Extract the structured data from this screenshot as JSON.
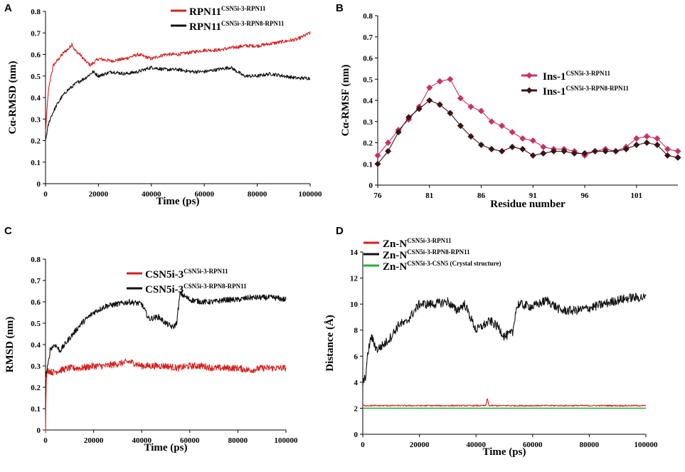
{
  "chart_data": [
    {
      "panel": "A",
      "type": "line",
      "xlabel": "Time (ps)",
      "ylabel": "Cα-RMSD (nm)",
      "xlim": [
        0,
        100000
      ],
      "ylim": [
        0,
        0.8
      ],
      "xticks": [
        "0",
        "20000",
        "40000",
        "60000",
        "80000",
        "100000"
      ],
      "yticks": [
        "0",
        "0.1",
        "0.2",
        "0.3",
        "0.4",
        "0.5",
        "0.6",
        "0.7",
        "0.8"
      ],
      "legend": "top-center",
      "series": [
        {
          "name": "RPN11",
          "sup": "CSN5i-3-RPN11",
          "color": "#d62020",
          "x": [
            0,
            1000,
            2000,
            3000,
            5000,
            7000,
            9000,
            10000,
            11000,
            13000,
            15000,
            17000,
            20000,
            25000,
            30000,
            35000,
            40000,
            45000,
            50000,
            55000,
            60000,
            65000,
            70000,
            75000,
            80000,
            85000,
            90000,
            95000,
            100000
          ],
          "y": [
            0.24,
            0.42,
            0.5,
            0.55,
            0.58,
            0.61,
            0.63,
            0.65,
            0.62,
            0.6,
            0.57,
            0.55,
            0.58,
            0.57,
            0.58,
            0.6,
            0.58,
            0.6,
            0.6,
            0.61,
            0.62,
            0.62,
            0.63,
            0.64,
            0.64,
            0.65,
            0.66,
            0.67,
            0.7
          ]
        },
        {
          "name": "RPN11",
          "sup": "CSN5i-3-RPN8-RPN11",
          "color": "#111111",
          "x": [
            0,
            1000,
            2000,
            4000,
            6000,
            8000,
            10000,
            12000,
            15000,
            18000,
            20000,
            25000,
            30000,
            35000,
            40000,
            45000,
            50000,
            55000,
            60000,
            65000,
            70000,
            75000,
            80000,
            85000,
            90000,
            95000,
            100000
          ],
          "y": [
            0.2,
            0.27,
            0.31,
            0.36,
            0.4,
            0.43,
            0.45,
            0.47,
            0.49,
            0.52,
            0.5,
            0.52,
            0.51,
            0.52,
            0.54,
            0.53,
            0.53,
            0.52,
            0.52,
            0.53,
            0.54,
            0.5,
            0.5,
            0.51,
            0.5,
            0.49,
            0.49
          ]
        }
      ]
    },
    {
      "panel": "B",
      "type": "line",
      "xlabel": "Residue number",
      "ylabel": "Cα-RMSF (nm)",
      "xlim": [
        76,
        105
      ],
      "ylim": [
        0,
        0.8
      ],
      "xticks": [
        "76",
        "81",
        "86",
        "91",
        "96",
        "101"
      ],
      "yticks": [
        "0",
        "0.1",
        "0.2",
        "0.3",
        "0.4",
        "0.5",
        "0.6",
        "0.7",
        "0.8"
      ],
      "legend": "right",
      "series": [
        {
          "name": "Ins-1",
          "sup": "CSN5i-3-RPN11",
          "color": "#c8326a",
          "x": [
            76,
            77,
            78,
            79,
            80,
            81,
            82,
            83,
            84,
            85,
            86,
            87,
            88,
            89,
            90,
            91,
            92,
            93,
            94,
            95,
            96,
            97,
            98,
            99,
            100,
            101,
            102,
            103,
            104,
            105
          ],
          "y": [
            0.14,
            0.2,
            0.26,
            0.31,
            0.37,
            0.46,
            0.49,
            0.5,
            0.41,
            0.37,
            0.35,
            0.3,
            0.28,
            0.25,
            0.22,
            0.21,
            0.18,
            0.17,
            0.17,
            0.16,
            0.14,
            0.16,
            0.17,
            0.16,
            0.18,
            0.22,
            0.23,
            0.22,
            0.17,
            0.16
          ]
        },
        {
          "name": "Ins-1",
          "sup": "CSN5i-3-RPN8-RPN11",
          "color": "#3a1414",
          "x": [
            76,
            77,
            78,
            79,
            80,
            81,
            82,
            83,
            84,
            85,
            86,
            87,
            88,
            89,
            90,
            91,
            92,
            93,
            94,
            95,
            96,
            97,
            98,
            99,
            100,
            101,
            102,
            103,
            104,
            105
          ],
          "y": [
            0.1,
            0.16,
            0.25,
            0.32,
            0.36,
            0.4,
            0.38,
            0.34,
            0.28,
            0.23,
            0.19,
            0.17,
            0.16,
            0.18,
            0.17,
            0.14,
            0.15,
            0.16,
            0.16,
            0.15,
            0.15,
            0.16,
            0.16,
            0.16,
            0.17,
            0.19,
            0.2,
            0.19,
            0.14,
            0.13
          ]
        }
      ]
    },
    {
      "panel": "C",
      "type": "line",
      "xlabel": "Time (ps)",
      "ylabel": "RMSD (nm)",
      "xlim": [
        0,
        100000
      ],
      "ylim": [
        0,
        0.8
      ],
      "xticks": [
        "0",
        "20000",
        "40000",
        "60000",
        "80000",
        "100000"
      ],
      "yticks": [
        "0",
        "0.1",
        "0.2",
        "0.3",
        "0.4",
        "0.5",
        "0.6",
        "0.7",
        "0.8"
      ],
      "legend": "top-center",
      "series": [
        {
          "name": "CSN5i-3",
          "sup": "CSN5i-3-RPN11",
          "color": "#d62020",
          "x": [
            0,
            300,
            600,
            1000,
            3000,
            6000,
            10000,
            15000,
            20000,
            25000,
            30000,
            35000,
            40000,
            45000,
            50000,
            55000,
            60000,
            65000,
            70000,
            75000,
            80000,
            85000,
            90000,
            95000,
            100000
          ],
          "y": [
            0,
            0.22,
            0.27,
            0.28,
            0.27,
            0.28,
            0.29,
            0.29,
            0.3,
            0.3,
            0.31,
            0.32,
            0.3,
            0.3,
            0.3,
            0.29,
            0.3,
            0.3,
            0.29,
            0.29,
            0.29,
            0.28,
            0.29,
            0.29,
            0.29
          ]
        },
        {
          "name": "CSN5i-3",
          "sup": "CSN5i-3-RPN8-RPN11",
          "color": "#111111",
          "x": [
            0,
            1000,
            2000,
            4000,
            6000,
            8000,
            10000,
            15000,
            20000,
            25000,
            30000,
            35000,
            40000,
            43000,
            47000,
            50000,
            53000,
            54500,
            56000,
            60000,
            65000,
            70000,
            75000,
            80000,
            85000,
            90000,
            95000,
            100000
          ],
          "y": [
            0.25,
            0.3,
            0.38,
            0.4,
            0.37,
            0.4,
            0.43,
            0.5,
            0.55,
            0.58,
            0.59,
            0.6,
            0.59,
            0.52,
            0.53,
            0.5,
            0.48,
            0.5,
            0.64,
            0.61,
            0.6,
            0.6,
            0.61,
            0.61,
            0.62,
            0.62,
            0.62,
            0.61
          ]
        }
      ]
    },
    {
      "panel": "D",
      "type": "line",
      "xlabel": "Time (ps)",
      "ylabel": "Distance (Å)",
      "xlim": [
        0,
        100000
      ],
      "ylim": [
        0,
        14
      ],
      "xticks": [
        "0",
        "20000",
        "40000",
        "60000",
        "80000",
        "100000"
      ],
      "yticks": [
        "0",
        "2",
        "4",
        "6",
        "8",
        "10",
        "12",
        "14"
      ],
      "legend": "top-left",
      "series": [
        {
          "name": "Zn-N",
          "sup": "CSN5i-3-RPN11",
          "color": "#d62020",
          "x": [
            0,
            20000,
            40000,
            43500,
            44000,
            44500,
            60000,
            80000,
            100000
          ],
          "y": [
            2.2,
            2.2,
            2.2,
            2.2,
            2.8,
            2.2,
            2.2,
            2.2,
            2.2
          ]
        },
        {
          "name": "Zn-N",
          "sup": "CSN5i-3-RPN8-RPN11",
          "color": "#111111",
          "x": [
            0,
            1000,
            2000,
            3000,
            5000,
            8000,
            10000,
            13000,
            15000,
            20000,
            25000,
            30000,
            33000,
            36000,
            40000,
            45000,
            48000,
            50000,
            53000,
            54000,
            55000,
            60000,
            65000,
            70000,
            75000,
            80000,
            85000,
            90000,
            95000,
            100000
          ],
          "y": [
            3.8,
            4.5,
            6.5,
            7.5,
            6.5,
            7.0,
            7.5,
            8.5,
            8.5,
            10.0,
            10.0,
            10.2,
            9.5,
            10.0,
            8.0,
            8.7,
            8.2,
            7.5,
            7.8,
            9.5,
            10.0,
            9.8,
            10.3,
            9.5,
            9.5,
            9.7,
            10.0,
            10.3,
            10.5,
            10.5
          ]
        },
        {
          "name": "Zn-N",
          "sup": "CSN5i-3-CSN5 (Crystal structure)",
          "color": "#2bb03a",
          "x": [
            0,
            100000
          ],
          "y": [
            2.0,
            2.0
          ]
        }
      ]
    }
  ]
}
